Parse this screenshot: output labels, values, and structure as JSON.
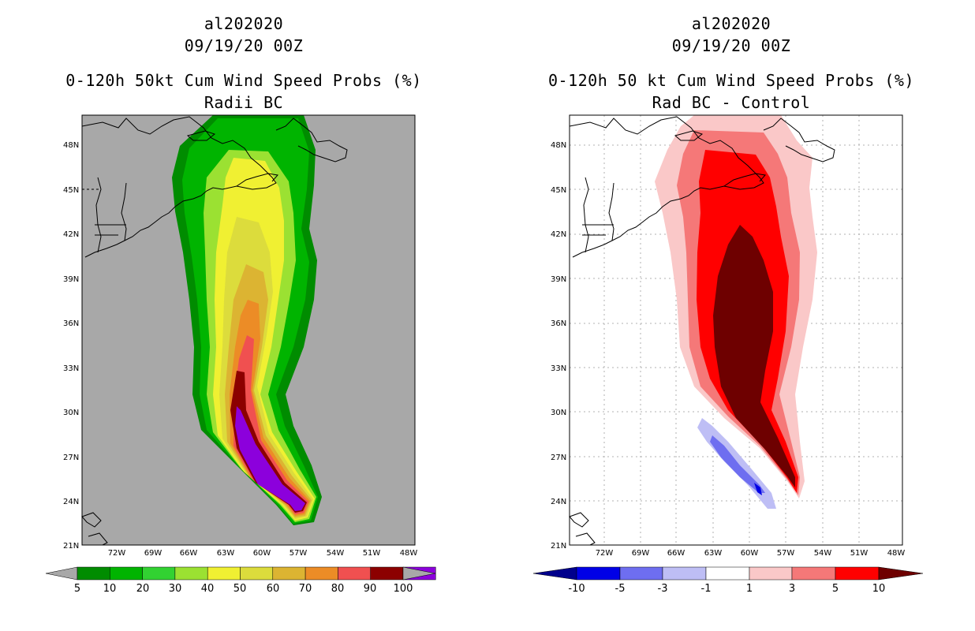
{
  "left": {
    "storm_id": "al202020",
    "datetime": "09/19/20 00Z",
    "product": "0-120h 50kt Cum Wind Speed Probs (%)",
    "subtitle": "Radii BC",
    "colorbar": {
      "labels": [
        "5",
        "10",
        "20",
        "30",
        "40",
        "50",
        "60",
        "70",
        "80",
        "90",
        "100"
      ],
      "colors": [
        "#008c00",
        "#00b400",
        "#32d232",
        "#9be132",
        "#f0f032",
        "#dcdc3c",
        "#dcb432",
        "#ec8c26",
        "#f05050",
        "#8c0000",
        "#8c00dc"
      ]
    }
  },
  "right": {
    "storm_id": "al202020",
    "datetime": "09/19/20 00Z",
    "product": "0-120h 50 kt Cum Wind Speed Probs (%)",
    "subtitle": "Rad BC - Control",
    "colorbar": {
      "labels": [
        "-10",
        "-5",
        "-3",
        "-1",
        "1",
        "3",
        "5",
        "10"
      ],
      "colors": [
        "#00008c",
        "#0000e6",
        "#6e6ef0",
        "#bebef5",
        "#ffffff",
        "#fac8c8",
        "#f57878",
        "#ff0000",
        "#6e0000"
      ]
    }
  },
  "axes": {
    "lat_labels": [
      "48N",
      "45N",
      "42N",
      "39N",
      "36N",
      "33N",
      "30N",
      "27N",
      "24N",
      "21N"
    ],
    "lon_labels": [
      "72W",
      "69W",
      "66W",
      "63W",
      "60W",
      "57W",
      "54W",
      "51W",
      "48W"
    ]
  },
  "colors": {
    "map_background": "#a8a8a8",
    "coast": "#000000"
  }
}
